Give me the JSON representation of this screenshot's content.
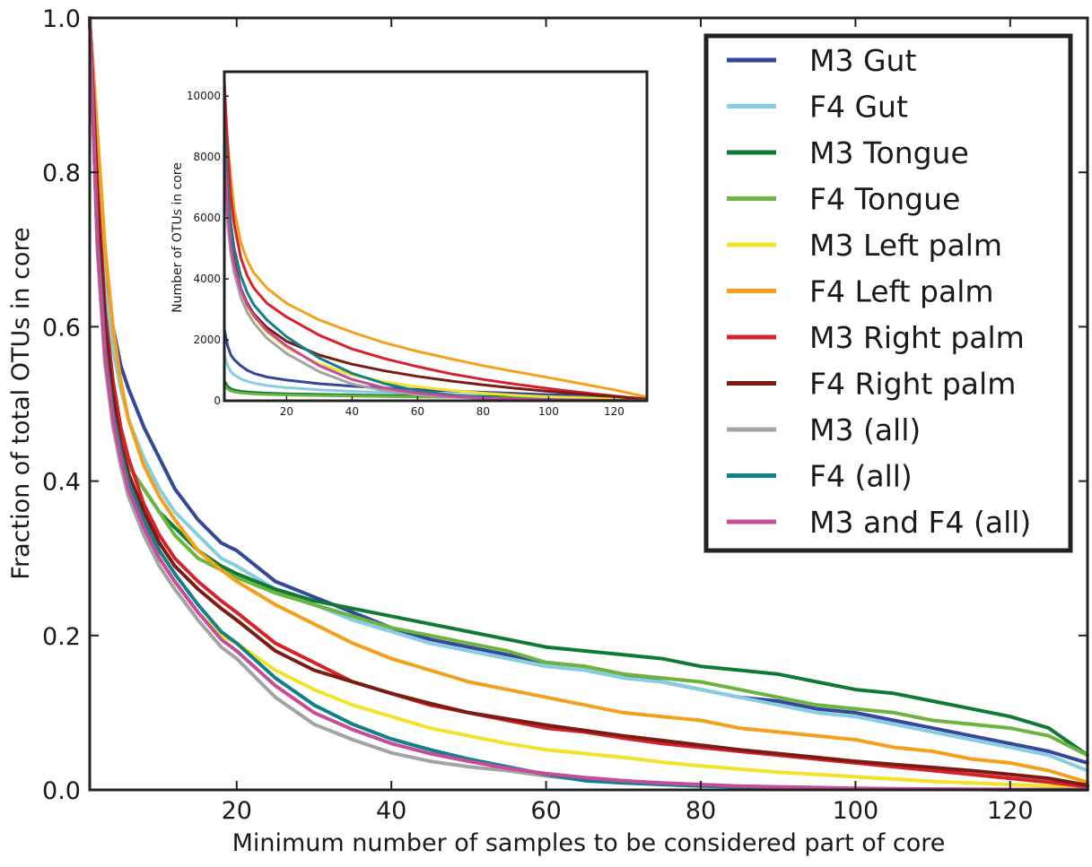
{
  "chart_data": {
    "type": "line",
    "xlabel": "Minimum number of samples to be considered part of core",
    "ylabel": "Fraction of total OTUs in core",
    "xlim": [
      1,
      130
    ],
    "ylim": [
      0,
      1.0
    ],
    "xticks": [
      20,
      40,
      60,
      80,
      100,
      120
    ],
    "yticks": [
      0.0,
      0.2,
      0.4,
      0.6,
      0.8,
      1.0
    ],
    "x": [
      1,
      2,
      3,
      4,
      5,
      6,
      8,
      10,
      12,
      15,
      18,
      20,
      25,
      30,
      35,
      40,
      45,
      50,
      55,
      60,
      65,
      70,
      75,
      80,
      85,
      90,
      95,
      100,
      105,
      110,
      115,
      120,
      125,
      130
    ],
    "legend": {
      "position": "top-right"
    },
    "series": [
      {
        "name": "M3 Gut",
        "color": "#35479a",
        "values": [
          1.0,
          0.8,
          0.67,
          0.6,
          0.55,
          0.52,
          0.47,
          0.43,
          0.39,
          0.35,
          0.32,
          0.31,
          0.27,
          0.25,
          0.23,
          0.21,
          0.195,
          0.185,
          0.175,
          0.165,
          0.16,
          0.15,
          0.14,
          0.13,
          0.12,
          0.115,
          0.105,
          0.1,
          0.09,
          0.08,
          0.07,
          0.06,
          0.05,
          0.035
        ]
      },
      {
        "name": "F4 Gut",
        "color": "#86cde0",
        "values": [
          1.0,
          0.78,
          0.65,
          0.57,
          0.52,
          0.48,
          0.43,
          0.39,
          0.36,
          0.33,
          0.3,
          0.29,
          0.26,
          0.24,
          0.22,
          0.205,
          0.19,
          0.18,
          0.17,
          0.16,
          0.155,
          0.145,
          0.14,
          0.13,
          0.12,
          0.11,
          0.1,
          0.095,
          0.085,
          0.075,
          0.065,
          0.055,
          0.045,
          0.025
        ]
      },
      {
        "name": "M3 Tongue",
        "color": "#0d7a36",
        "values": [
          1.0,
          0.7,
          0.55,
          0.48,
          0.45,
          0.42,
          0.39,
          0.36,
          0.34,
          0.31,
          0.29,
          0.28,
          0.26,
          0.245,
          0.235,
          0.225,
          0.215,
          0.205,
          0.195,
          0.185,
          0.18,
          0.175,
          0.17,
          0.16,
          0.155,
          0.15,
          0.14,
          0.13,
          0.125,
          0.115,
          0.105,
          0.095,
          0.08,
          0.045
        ]
      },
      {
        "name": "F4 Tongue",
        "color": "#6db33f",
        "values": [
          1.0,
          0.7,
          0.56,
          0.49,
          0.45,
          0.42,
          0.39,
          0.36,
          0.33,
          0.3,
          0.285,
          0.275,
          0.255,
          0.24,
          0.225,
          0.21,
          0.2,
          0.19,
          0.18,
          0.165,
          0.16,
          0.15,
          0.145,
          0.14,
          0.13,
          0.12,
          0.11,
          0.105,
          0.1,
          0.09,
          0.085,
          0.08,
          0.07,
          0.045
        ]
      },
      {
        "name": "M3 Left palm",
        "color": "#f2e32a",
        "values": [
          1.0,
          0.72,
          0.56,
          0.48,
          0.43,
          0.39,
          0.34,
          0.3,
          0.27,
          0.23,
          0.2,
          0.19,
          0.155,
          0.13,
          0.11,
          0.095,
          0.08,
          0.07,
          0.06,
          0.052,
          0.047,
          0.042,
          0.036,
          0.031,
          0.027,
          0.023,
          0.02,
          0.017,
          0.014,
          0.011,
          0.009,
          0.007,
          0.005,
          0.003
        ]
      },
      {
        "name": "F4 Left palm",
        "color": "#f3a11b",
        "values": [
          1.0,
          0.85,
          0.7,
          0.6,
          0.53,
          0.48,
          0.42,
          0.38,
          0.35,
          0.31,
          0.285,
          0.27,
          0.24,
          0.215,
          0.19,
          0.17,
          0.155,
          0.14,
          0.13,
          0.12,
          0.11,
          0.1,
          0.095,
          0.09,
          0.08,
          0.075,
          0.07,
          0.065,
          0.055,
          0.05,
          0.04,
          0.035,
          0.025,
          0.01
        ]
      },
      {
        "name": "M3 Right palm",
        "color": "#d8202a",
        "values": [
          1.0,
          0.78,
          0.62,
          0.53,
          0.47,
          0.43,
          0.37,
          0.33,
          0.3,
          0.27,
          0.245,
          0.23,
          0.19,
          0.165,
          0.14,
          0.125,
          0.11,
          0.1,
          0.09,
          0.08,
          0.075,
          0.067,
          0.06,
          0.055,
          0.05,
          0.045,
          0.04,
          0.035,
          0.03,
          0.025,
          0.02,
          0.015,
          0.01,
          0.004
        ]
      },
      {
        "name": "F4 Right palm",
        "color": "#7a1c14",
        "values": [
          1.0,
          0.76,
          0.6,
          0.51,
          0.45,
          0.41,
          0.36,
          0.32,
          0.29,
          0.26,
          0.235,
          0.22,
          0.18,
          0.155,
          0.14,
          0.125,
          0.112,
          0.1,
          0.092,
          0.084,
          0.077,
          0.07,
          0.064,
          0.058,
          0.052,
          0.047,
          0.042,
          0.037,
          0.033,
          0.029,
          0.025,
          0.02,
          0.015,
          0.006
        ]
      },
      {
        "name": "M3 (all)",
        "color": "#a3a3a3",
        "values": [
          1.0,
          0.7,
          0.55,
          0.47,
          0.42,
          0.38,
          0.33,
          0.29,
          0.26,
          0.22,
          0.185,
          0.17,
          0.12,
          0.085,
          0.065,
          0.048,
          0.037,
          0.03,
          0.025,
          0.018,
          0.013,
          0.01,
          0.008,
          0.006,
          0.004,
          0.003,
          0.002,
          0.0015,
          0.001,
          0.0008,
          0.0006,
          0.0004,
          0.0003,
          0.0002
        ]
      },
      {
        "name": "F4 (all)",
        "color": "#11808a",
        "values": [
          1.0,
          0.72,
          0.57,
          0.49,
          0.44,
          0.4,
          0.35,
          0.31,
          0.28,
          0.24,
          0.205,
          0.19,
          0.145,
          0.11,
          0.085,
          0.066,
          0.052,
          0.04,
          0.03,
          0.02,
          0.012,
          0.009,
          0.007,
          0.005,
          0.004,
          0.003,
          0.002,
          0.0015,
          0.001,
          0.0008,
          0.0006,
          0.0004,
          0.0003,
          0.0002
        ]
      },
      {
        "name": " M3 and F4 (all)",
        "color": "#c64b99",
        "values": [
          1.0,
          0.71,
          0.56,
          0.48,
          0.43,
          0.39,
          0.34,
          0.3,
          0.27,
          0.23,
          0.195,
          0.18,
          0.135,
          0.1,
          0.078,
          0.06,
          0.047,
          0.037,
          0.028,
          0.021,
          0.016,
          0.012,
          0.009,
          0.007,
          0.005,
          0.004,
          0.003,
          0.002,
          0.0015,
          0.001,
          0.0008,
          0.0006,
          0.0004,
          0.0002
        ]
      }
    ],
    "inset": {
      "type": "line",
      "ylabel": "Number of OTUs in core",
      "xlim": [
        1,
        130
      ],
      "ylim": [
        0,
        10800
      ],
      "xticks": [
        20,
        40,
        60,
        80,
        100,
        120
      ],
      "yticks": [
        0,
        2000,
        4000,
        6000,
        8000,
        10000
      ],
      "x": [
        1,
        2,
        3,
        4,
        6,
        8,
        10,
        14,
        20,
        30,
        40,
        50,
        60,
        70,
        80,
        90,
        100,
        110,
        120,
        130
      ],
      "series": [
        {
          "name": "M3 Gut",
          "color": "#35479a",
          "values": [
            2350,
            1800,
            1500,
            1350,
            1150,
            1000,
            900,
            780,
            680,
            560,
            480,
            420,
            370,
            320,
            280,
            240,
            200,
            170,
            130,
            70
          ]
        },
        {
          "name": "F4 Gut",
          "color": "#86cde0",
          "values": [
            1500,
            1150,
            950,
            850,
            720,
            640,
            580,
            500,
            430,
            360,
            310,
            270,
            240,
            210,
            180,
            150,
            130,
            110,
            85,
            40
          ]
        },
        {
          "name": "M3 Tongue",
          "color": "#0d7a36",
          "values": [
            650,
            470,
            390,
            350,
            310,
            290,
            270,
            250,
            230,
            210,
            190,
            175,
            160,
            150,
            135,
            125,
            110,
            95,
            80,
            40
          ]
        },
        {
          "name": "F4 Tongue",
          "color": "#6db33f",
          "values": [
            520,
            380,
            320,
            290,
            260,
            240,
            225,
            205,
            190,
            170,
            155,
            140,
            128,
            115,
            105,
            95,
            85,
            75,
            62,
            35
          ]
        },
        {
          "name": "M3 Left palm",
          "color": "#f2e32a",
          "values": [
            8000,
            6000,
            5000,
            4400,
            3600,
            3100,
            2750,
            2250,
            1750,
            1200,
            850,
            620,
            460,
            340,
            250,
            180,
            130,
            90,
            55,
            20
          ]
        },
        {
          "name": "F4 Left palm",
          "color": "#f3a11b",
          "values": [
            9800,
            8500,
            7300,
            6300,
            5200,
            4600,
            4200,
            3700,
            3200,
            2650,
            2250,
            1900,
            1620,
            1380,
            1150,
            950,
            760,
            560,
            360,
            120
          ]
        },
        {
          "name": "M3 Right palm",
          "color": "#d8202a",
          "values": [
            10500,
            8300,
            6700,
            5800,
            4700,
            4100,
            3700,
            3200,
            2750,
            2150,
            1700,
            1380,
            1120,
            890,
            700,
            540,
            400,
            270,
            160,
            50
          ]
        },
        {
          "name": "F4 Right palm",
          "color": "#7a1c14",
          "values": [
            8500,
            6500,
            5300,
            4600,
            3700,
            3200,
            2850,
            2400,
            1950,
            1500,
            1200,
            980,
            800,
            650,
            520,
            410,
            310,
            220,
            140,
            40
          ]
        },
        {
          "name": "M3 (all)",
          "color": "#a3a3a3",
          "values": [
            7800,
            5800,
            4800,
            4200,
            3400,
            2900,
            2550,
            2050,
            1550,
            950,
            550,
            330,
            200,
            120,
            75,
            45,
            28,
            18,
            10,
            5
          ]
        },
        {
          "name": "F4 (all)",
          "color": "#11808a",
          "values": [
            9000,
            7000,
            5800,
            5000,
            4100,
            3550,
            3150,
            2650,
            2100,
            1400,
            900,
            560,
            330,
            190,
            110,
            65,
            40,
            25,
            15,
            6
          ]
        },
        {
          "name": " M3 and F4 (all)",
          "color": "#c64b99",
          "values": [
            8200,
            6200,
            5100,
            4450,
            3650,
            3150,
            2800,
            2300,
            1800,
            1150,
            700,
            420,
            250,
            150,
            90,
            55,
            33,
            20,
            12,
            5
          ]
        }
      ]
    }
  }
}
